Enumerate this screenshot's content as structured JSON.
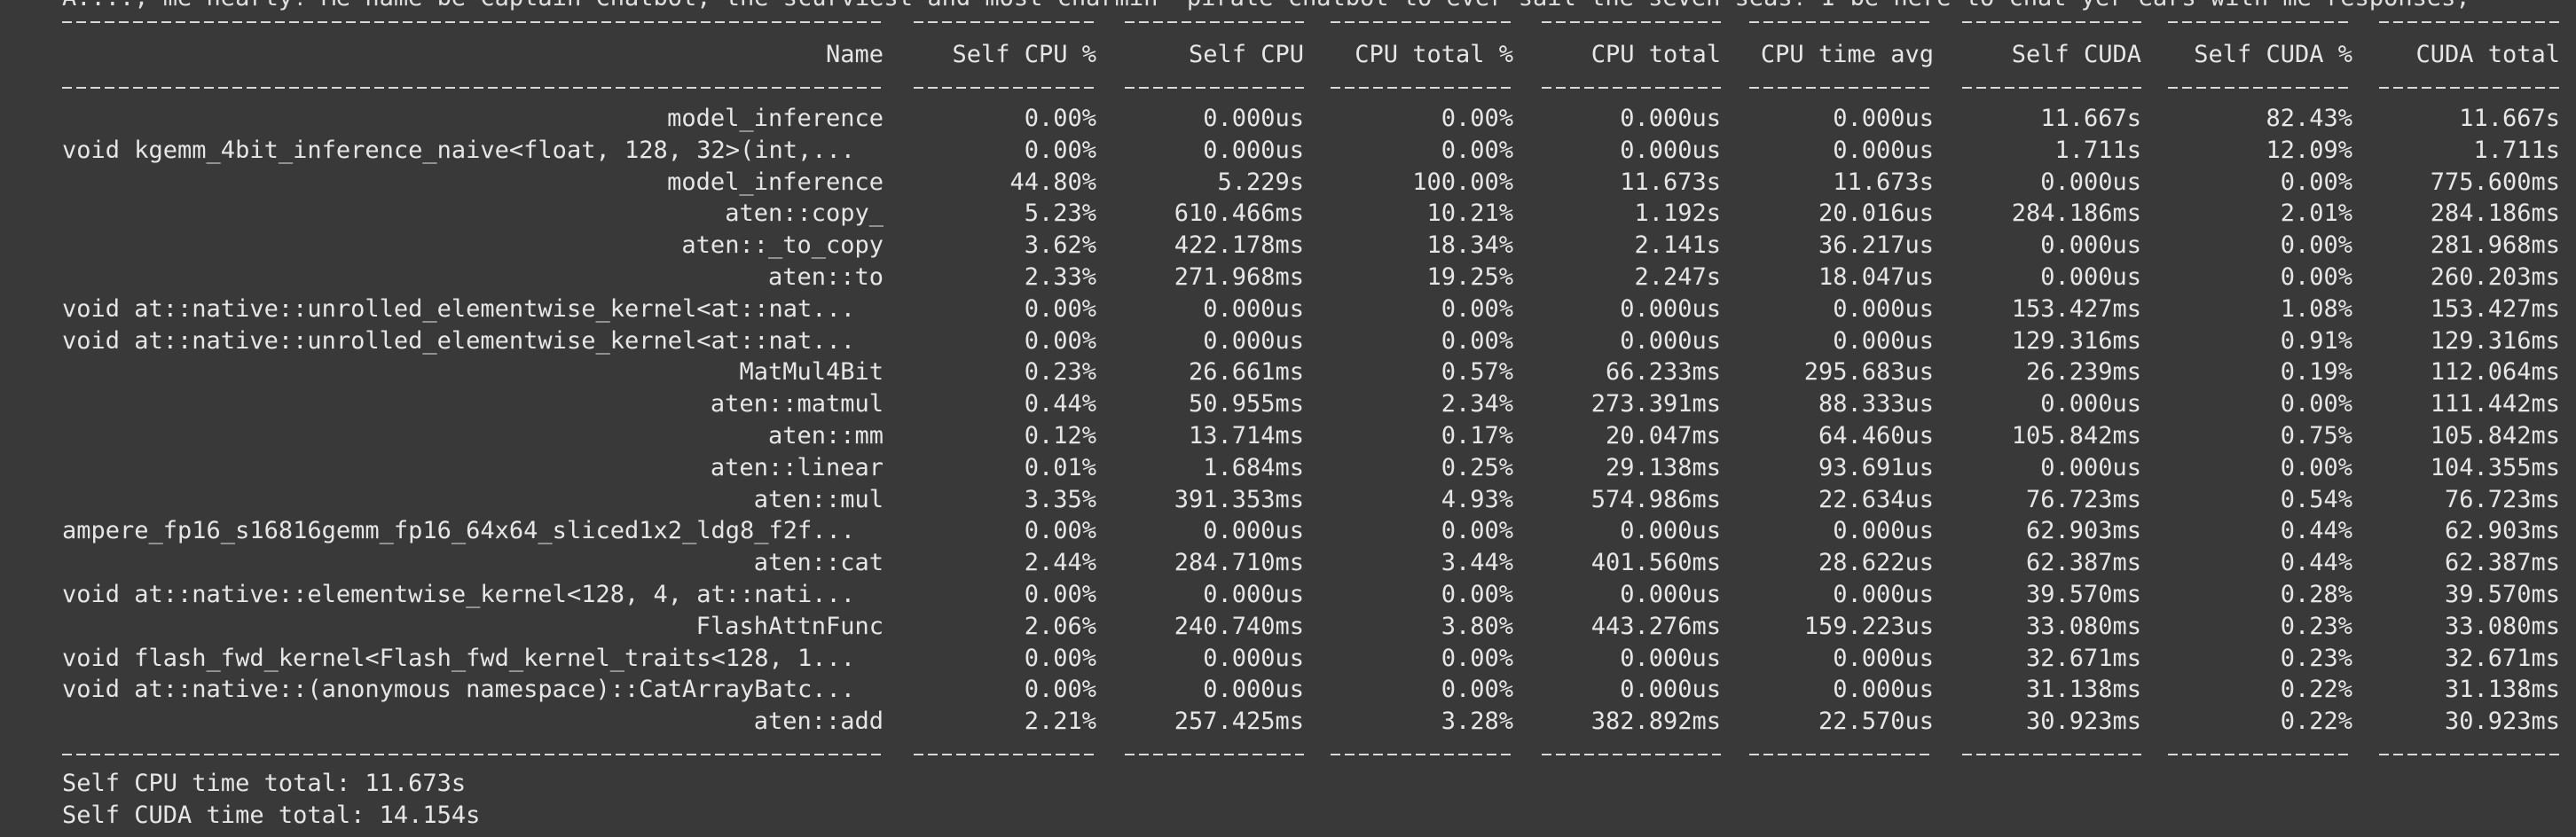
{
  "top_text": "A...., me hearty! Me name be Captain Chatbot, the scurviest and most charmin' pirate chatbot to ever sail the seven seas! I be here to chat yer ears with me responses,",
  "columns": [
    "Name",
    "Self CPU %",
    "Self CPU",
    "CPU total %",
    "CPU total",
    "CPU time avg",
    "Self CUDA",
    "Self CUDA %",
    "CUDA total"
  ],
  "rows": [
    {
      "name": "model_inference",
      "align": "right",
      "vals": [
        "0.00%",
        "0.000us",
        "0.00%",
        "0.000us",
        "0.000us",
        "11.667s",
        "82.43%",
        "11.667s"
      ]
    },
    {
      "name": "void kgemm_4bit_inference_naive<float, 128, 32>(int,...",
      "align": "left",
      "vals": [
        "0.00%",
        "0.000us",
        "0.00%",
        "0.000us",
        "0.000us",
        "1.711s",
        "12.09%",
        "1.711s"
      ]
    },
    {
      "name": "model_inference",
      "align": "right",
      "vals": [
        "44.80%",
        "5.229s",
        "100.00%",
        "11.673s",
        "11.673s",
        "0.000us",
        "0.00%",
        "775.600ms"
      ]
    },
    {
      "name": "aten::copy_",
      "align": "right",
      "vals": [
        "5.23%",
        "610.466ms",
        "10.21%",
        "1.192s",
        "20.016us",
        "284.186ms",
        "2.01%",
        "284.186ms"
      ]
    },
    {
      "name": "aten::_to_copy",
      "align": "right",
      "vals": [
        "3.62%",
        "422.178ms",
        "18.34%",
        "2.141s",
        "36.217us",
        "0.000us",
        "0.00%",
        "281.968ms"
      ]
    },
    {
      "name": "aten::to",
      "align": "right",
      "vals": [
        "2.33%",
        "271.968ms",
        "19.25%",
        "2.247s",
        "18.047us",
        "0.000us",
        "0.00%",
        "260.203ms"
      ]
    },
    {
      "name": "void at::native::unrolled_elementwise_kernel<at::nat...",
      "align": "left",
      "vals": [
        "0.00%",
        "0.000us",
        "0.00%",
        "0.000us",
        "0.000us",
        "153.427ms",
        "1.08%",
        "153.427ms"
      ]
    },
    {
      "name": "void at::native::unrolled_elementwise_kernel<at::nat...",
      "align": "left",
      "vals": [
        "0.00%",
        "0.000us",
        "0.00%",
        "0.000us",
        "0.000us",
        "129.316ms",
        "0.91%",
        "129.316ms"
      ]
    },
    {
      "name": "MatMul4Bit",
      "align": "right",
      "vals": [
        "0.23%",
        "26.661ms",
        "0.57%",
        "66.233ms",
        "295.683us",
        "26.239ms",
        "0.19%",
        "112.064ms"
      ]
    },
    {
      "name": "aten::matmul",
      "align": "right",
      "vals": [
        "0.44%",
        "50.955ms",
        "2.34%",
        "273.391ms",
        "88.333us",
        "0.000us",
        "0.00%",
        "111.442ms"
      ]
    },
    {
      "name": "aten::mm",
      "align": "right",
      "vals": [
        "0.12%",
        "13.714ms",
        "0.17%",
        "20.047ms",
        "64.460us",
        "105.842ms",
        "0.75%",
        "105.842ms"
      ]
    },
    {
      "name": "aten::linear",
      "align": "right",
      "vals": [
        "0.01%",
        "1.684ms",
        "0.25%",
        "29.138ms",
        "93.691us",
        "0.000us",
        "0.00%",
        "104.355ms"
      ]
    },
    {
      "name": "aten::mul",
      "align": "right",
      "vals": [
        "3.35%",
        "391.353ms",
        "4.93%",
        "574.986ms",
        "22.634us",
        "76.723ms",
        "0.54%",
        "76.723ms"
      ]
    },
    {
      "name": "ampere_fp16_s16816gemm_fp16_64x64_sliced1x2_ldg8_f2f...",
      "align": "left",
      "vals": [
        "0.00%",
        "0.000us",
        "0.00%",
        "0.000us",
        "0.000us",
        "62.903ms",
        "0.44%",
        "62.903ms"
      ]
    },
    {
      "name": "aten::cat",
      "align": "right",
      "vals": [
        "2.44%",
        "284.710ms",
        "3.44%",
        "401.560ms",
        "28.622us",
        "62.387ms",
        "0.44%",
        "62.387ms"
      ]
    },
    {
      "name": "void at::native::elementwise_kernel<128, 4, at::nati...",
      "align": "left",
      "vals": [
        "0.00%",
        "0.000us",
        "0.00%",
        "0.000us",
        "0.000us",
        "39.570ms",
        "0.28%",
        "39.570ms"
      ]
    },
    {
      "name": "FlashAttnFunc",
      "align": "right",
      "vals": [
        "2.06%",
        "240.740ms",
        "3.80%",
        "443.276ms",
        "159.223us",
        "33.080ms",
        "0.23%",
        "33.080ms"
      ]
    },
    {
      "name": "void flash_fwd_kernel<Flash_fwd_kernel_traits<128, 1...",
      "align": "left",
      "vals": [
        "0.00%",
        "0.000us",
        "0.00%",
        "0.000us",
        "0.000us",
        "32.671ms",
        "0.23%",
        "32.671ms"
      ]
    },
    {
      "name": "void at::native::(anonymous namespace)::CatArrayBatc...",
      "align": "left",
      "vals": [
        "0.00%",
        "0.000us",
        "0.00%",
        "0.000us",
        "0.000us",
        "31.138ms",
        "0.22%",
        "31.138ms"
      ]
    },
    {
      "name": "aten::add",
      "align": "right",
      "vals": [
        "2.21%",
        "257.425ms",
        "3.28%",
        "382.892ms",
        "22.570us",
        "30.923ms",
        "0.22%",
        "30.923ms"
      ]
    }
  ],
  "footer": {
    "self_cpu_total": "Self CPU time total: 11.673s",
    "self_cuda_total": "Self CUDA time total: 14.154s"
  },
  "colors": {
    "background": "#393939",
    "text": "#e6e6e6"
  }
}
